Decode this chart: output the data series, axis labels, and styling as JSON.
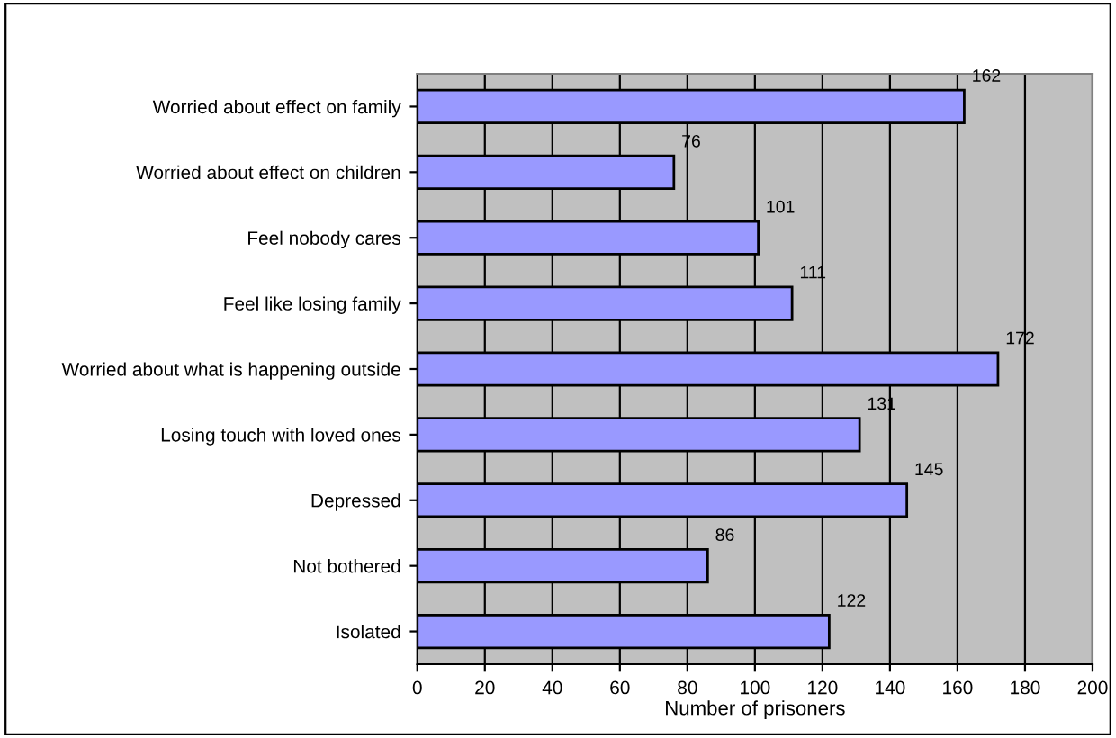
{
  "chart_data": {
    "type": "bar",
    "orientation": "horizontal",
    "xlabel": "Number of prisoners",
    "categories": [
      "Worried about effect on family",
      "Worried about effect on children",
      "Feel nobody cares",
      "Feel like losing family",
      "Worried about what is happening outside",
      "Losing touch with loved ones",
      "Depressed",
      "Not bothered",
      "Isolated"
    ],
    "values": [
      162,
      76,
      101,
      111,
      172,
      131,
      145,
      86,
      122
    ],
    "color": "#9999ff",
    "xlim": [
      0,
      200
    ],
    "xticks": [
      0,
      20,
      40,
      60,
      80,
      100,
      120,
      140,
      160,
      180,
      200
    ],
    "grid": "x",
    "data_labels": true
  }
}
